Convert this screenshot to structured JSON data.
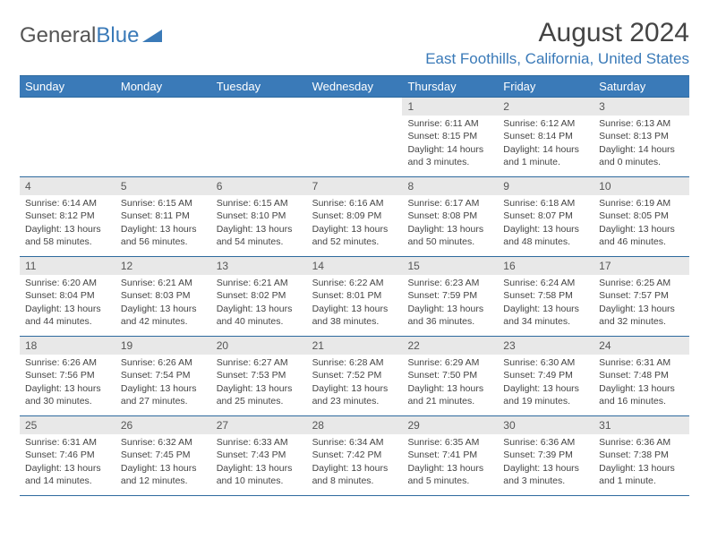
{
  "logo": {
    "text1": "General",
    "text2": "Blue"
  },
  "title": "August 2024",
  "location": "East Foothills, California, United States",
  "colors": {
    "header_bg": "#3a7ab8",
    "header_text": "#ffffff",
    "daynum_bg": "#e8e8e8",
    "border": "#2e6a9e",
    "text": "#444444"
  },
  "weekdays": [
    "Sunday",
    "Monday",
    "Tuesday",
    "Wednesday",
    "Thursday",
    "Friday",
    "Saturday"
  ],
  "weeks": [
    [
      null,
      null,
      null,
      null,
      {
        "n": "1",
        "sr": "Sunrise: 6:11 AM",
        "ss": "Sunset: 8:15 PM",
        "d1": "Daylight: 14 hours",
        "d2": "and 3 minutes."
      },
      {
        "n": "2",
        "sr": "Sunrise: 6:12 AM",
        "ss": "Sunset: 8:14 PM",
        "d1": "Daylight: 14 hours",
        "d2": "and 1 minute."
      },
      {
        "n": "3",
        "sr": "Sunrise: 6:13 AM",
        "ss": "Sunset: 8:13 PM",
        "d1": "Daylight: 14 hours",
        "d2": "and 0 minutes."
      }
    ],
    [
      {
        "n": "4",
        "sr": "Sunrise: 6:14 AM",
        "ss": "Sunset: 8:12 PM",
        "d1": "Daylight: 13 hours",
        "d2": "and 58 minutes."
      },
      {
        "n": "5",
        "sr": "Sunrise: 6:15 AM",
        "ss": "Sunset: 8:11 PM",
        "d1": "Daylight: 13 hours",
        "d2": "and 56 minutes."
      },
      {
        "n": "6",
        "sr": "Sunrise: 6:15 AM",
        "ss": "Sunset: 8:10 PM",
        "d1": "Daylight: 13 hours",
        "d2": "and 54 minutes."
      },
      {
        "n": "7",
        "sr": "Sunrise: 6:16 AM",
        "ss": "Sunset: 8:09 PM",
        "d1": "Daylight: 13 hours",
        "d2": "and 52 minutes."
      },
      {
        "n": "8",
        "sr": "Sunrise: 6:17 AM",
        "ss": "Sunset: 8:08 PM",
        "d1": "Daylight: 13 hours",
        "d2": "and 50 minutes."
      },
      {
        "n": "9",
        "sr": "Sunrise: 6:18 AM",
        "ss": "Sunset: 8:07 PM",
        "d1": "Daylight: 13 hours",
        "d2": "and 48 minutes."
      },
      {
        "n": "10",
        "sr": "Sunrise: 6:19 AM",
        "ss": "Sunset: 8:05 PM",
        "d1": "Daylight: 13 hours",
        "d2": "and 46 minutes."
      }
    ],
    [
      {
        "n": "11",
        "sr": "Sunrise: 6:20 AM",
        "ss": "Sunset: 8:04 PM",
        "d1": "Daylight: 13 hours",
        "d2": "and 44 minutes."
      },
      {
        "n": "12",
        "sr": "Sunrise: 6:21 AM",
        "ss": "Sunset: 8:03 PM",
        "d1": "Daylight: 13 hours",
        "d2": "and 42 minutes."
      },
      {
        "n": "13",
        "sr": "Sunrise: 6:21 AM",
        "ss": "Sunset: 8:02 PM",
        "d1": "Daylight: 13 hours",
        "d2": "and 40 minutes."
      },
      {
        "n": "14",
        "sr": "Sunrise: 6:22 AM",
        "ss": "Sunset: 8:01 PM",
        "d1": "Daylight: 13 hours",
        "d2": "and 38 minutes."
      },
      {
        "n": "15",
        "sr": "Sunrise: 6:23 AM",
        "ss": "Sunset: 7:59 PM",
        "d1": "Daylight: 13 hours",
        "d2": "and 36 minutes."
      },
      {
        "n": "16",
        "sr": "Sunrise: 6:24 AM",
        "ss": "Sunset: 7:58 PM",
        "d1": "Daylight: 13 hours",
        "d2": "and 34 minutes."
      },
      {
        "n": "17",
        "sr": "Sunrise: 6:25 AM",
        "ss": "Sunset: 7:57 PM",
        "d1": "Daylight: 13 hours",
        "d2": "and 32 minutes."
      }
    ],
    [
      {
        "n": "18",
        "sr": "Sunrise: 6:26 AM",
        "ss": "Sunset: 7:56 PM",
        "d1": "Daylight: 13 hours",
        "d2": "and 30 minutes."
      },
      {
        "n": "19",
        "sr": "Sunrise: 6:26 AM",
        "ss": "Sunset: 7:54 PM",
        "d1": "Daylight: 13 hours",
        "d2": "and 27 minutes."
      },
      {
        "n": "20",
        "sr": "Sunrise: 6:27 AM",
        "ss": "Sunset: 7:53 PM",
        "d1": "Daylight: 13 hours",
        "d2": "and 25 minutes."
      },
      {
        "n": "21",
        "sr": "Sunrise: 6:28 AM",
        "ss": "Sunset: 7:52 PM",
        "d1": "Daylight: 13 hours",
        "d2": "and 23 minutes."
      },
      {
        "n": "22",
        "sr": "Sunrise: 6:29 AM",
        "ss": "Sunset: 7:50 PM",
        "d1": "Daylight: 13 hours",
        "d2": "and 21 minutes."
      },
      {
        "n": "23",
        "sr": "Sunrise: 6:30 AM",
        "ss": "Sunset: 7:49 PM",
        "d1": "Daylight: 13 hours",
        "d2": "and 19 minutes."
      },
      {
        "n": "24",
        "sr": "Sunrise: 6:31 AM",
        "ss": "Sunset: 7:48 PM",
        "d1": "Daylight: 13 hours",
        "d2": "and 16 minutes."
      }
    ],
    [
      {
        "n": "25",
        "sr": "Sunrise: 6:31 AM",
        "ss": "Sunset: 7:46 PM",
        "d1": "Daylight: 13 hours",
        "d2": "and 14 minutes."
      },
      {
        "n": "26",
        "sr": "Sunrise: 6:32 AM",
        "ss": "Sunset: 7:45 PM",
        "d1": "Daylight: 13 hours",
        "d2": "and 12 minutes."
      },
      {
        "n": "27",
        "sr": "Sunrise: 6:33 AM",
        "ss": "Sunset: 7:43 PM",
        "d1": "Daylight: 13 hours",
        "d2": "and 10 minutes."
      },
      {
        "n": "28",
        "sr": "Sunrise: 6:34 AM",
        "ss": "Sunset: 7:42 PM",
        "d1": "Daylight: 13 hours",
        "d2": "and 8 minutes."
      },
      {
        "n": "29",
        "sr": "Sunrise: 6:35 AM",
        "ss": "Sunset: 7:41 PM",
        "d1": "Daylight: 13 hours",
        "d2": "and 5 minutes."
      },
      {
        "n": "30",
        "sr": "Sunrise: 6:36 AM",
        "ss": "Sunset: 7:39 PM",
        "d1": "Daylight: 13 hours",
        "d2": "and 3 minutes."
      },
      {
        "n": "31",
        "sr": "Sunrise: 6:36 AM",
        "ss": "Sunset: 7:38 PM",
        "d1": "Daylight: 13 hours",
        "d2": "and 1 minute."
      }
    ]
  ]
}
